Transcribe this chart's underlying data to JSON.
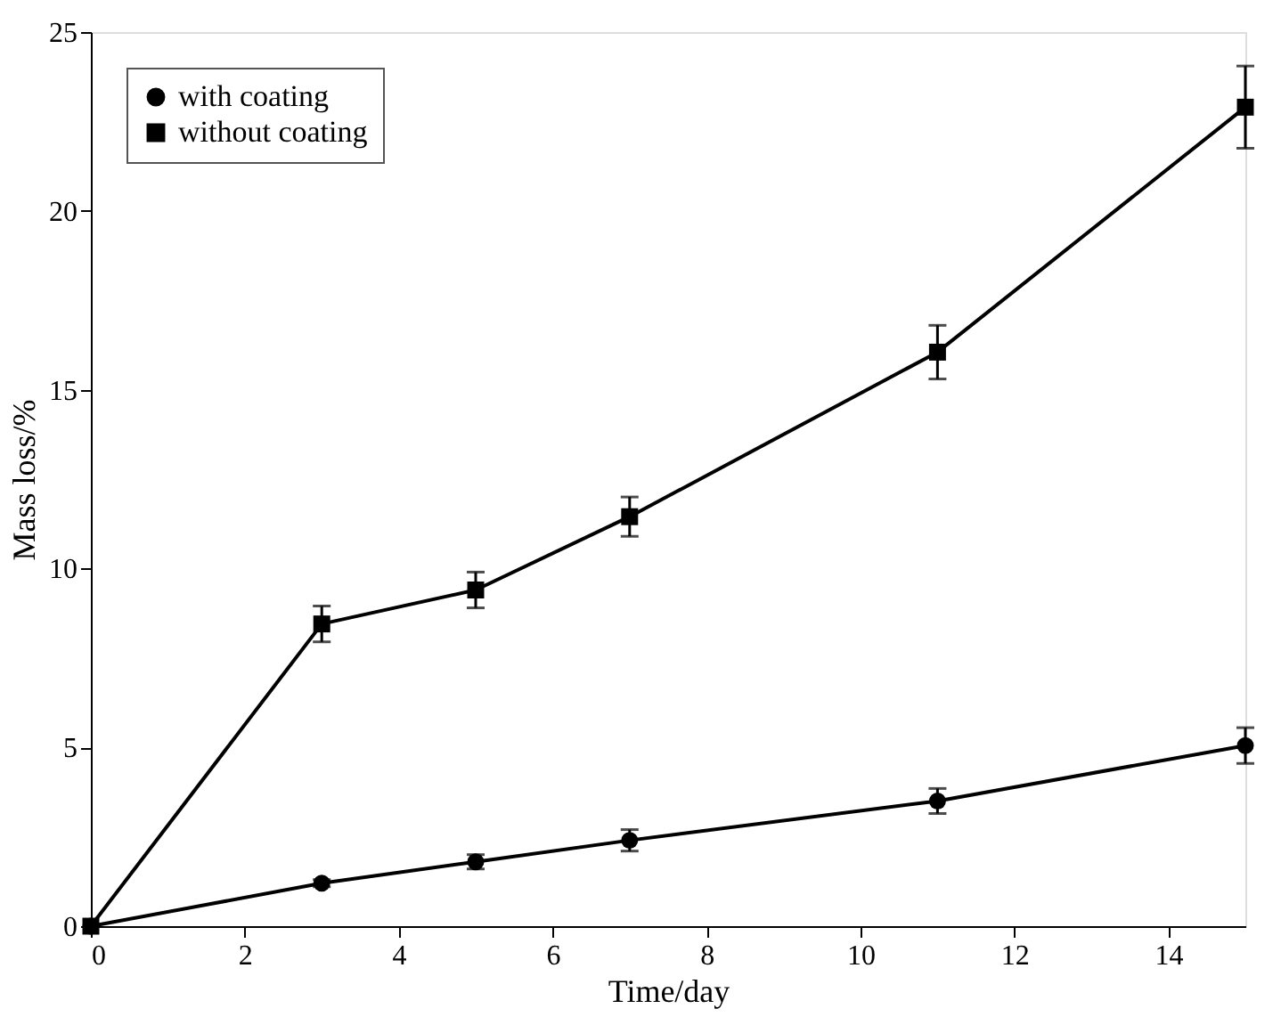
{
  "chart_data": {
    "type": "line",
    "xlabel": "Time/day",
    "ylabel": "Mass loss/%",
    "x": [
      0,
      3,
      5,
      7,
      11,
      15
    ],
    "series": [
      {
        "name": "with coating",
        "color": "#000000",
        "marker": "circle",
        "values": [
          0,
          1.2,
          1.8,
          2.4,
          3.5,
          5.05
        ],
        "errors": [
          null,
          0.1,
          0.2,
          0.3,
          0.35,
          0.5
        ]
      },
      {
        "name": "without coating",
        "color": "#000000",
        "marker": "square",
        "values": [
          0,
          8.45,
          9.4,
          11.45,
          16.05,
          22.9
        ],
        "errors": [
          null,
          0.5,
          0.5,
          0.55,
          0.75,
          1.15
        ]
      }
    ],
    "xlim": [
      0,
      15
    ],
    "xticks": [
      0,
      2,
      4,
      6,
      8,
      10,
      12,
      14
    ],
    "ylim": [
      0,
      25
    ],
    "yticks": [
      0,
      5,
      10,
      15,
      20,
      25
    ],
    "grid": false,
    "legend": "top left",
    "line_style": "solid"
  }
}
